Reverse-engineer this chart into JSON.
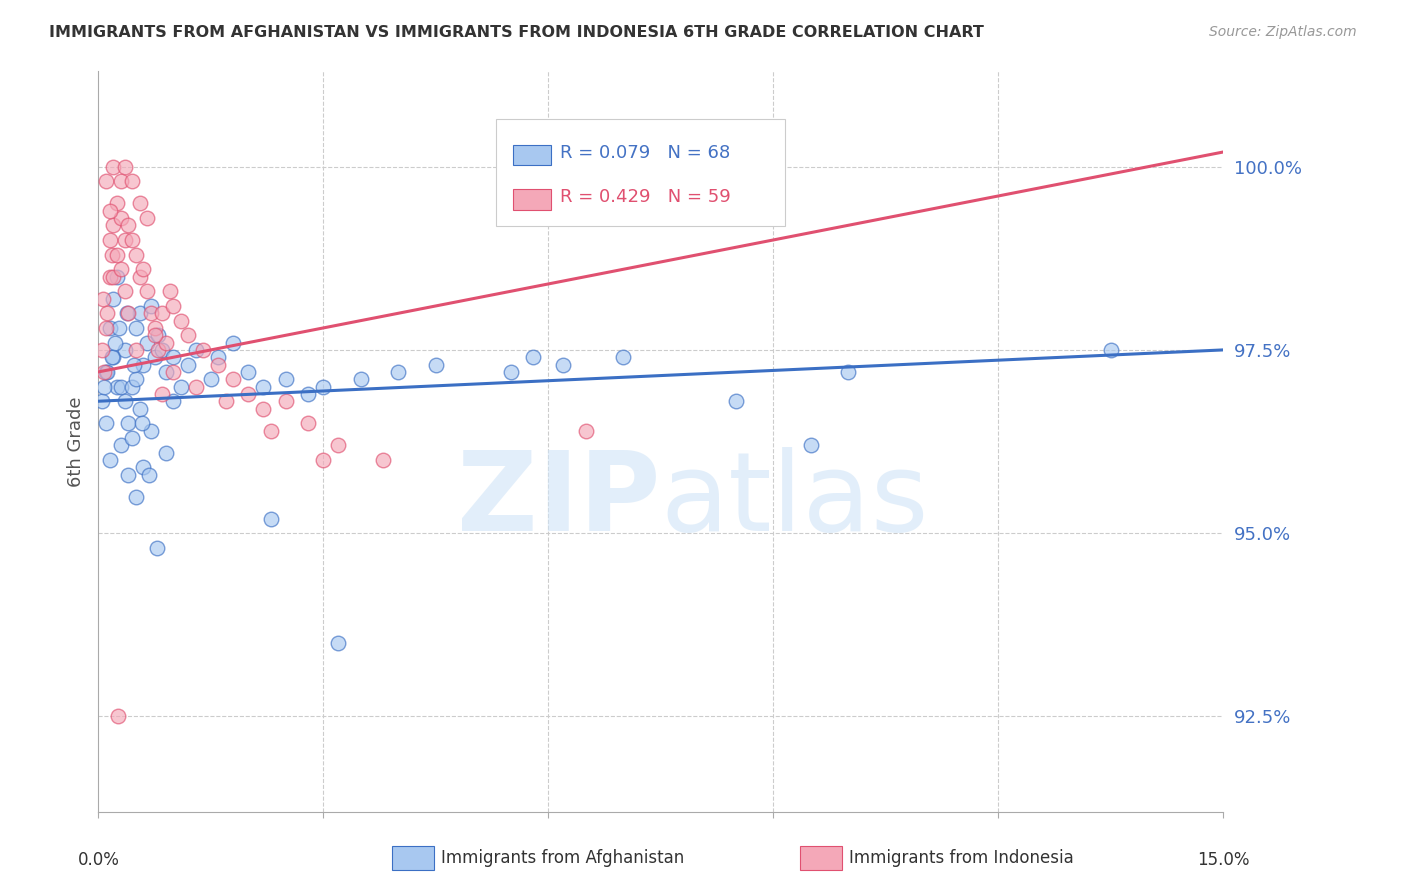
{
  "title": "IMMIGRANTS FROM AFGHANISTAN VS IMMIGRANTS FROM INDONESIA 6TH GRADE CORRELATION CHART",
  "source": "Source: ZipAtlas.com",
  "ylabel": "6th Grade",
  "yaxis_values": [
    100.0,
    97.5,
    95.0,
    92.5
  ],
  "xmin": 0.0,
  "xmax": 15.0,
  "ymin": 91.2,
  "ymax": 101.3,
  "legend_r_afghanistan": "R = 0.079",
  "legend_n_afghanistan": "N = 68",
  "legend_r_indonesia": "R = 0.429",
  "legend_n_indonesia": "N = 59",
  "afghanistan_color": "#A8C8F0",
  "indonesia_color": "#F4A8B8",
  "afghanistan_line_color": "#3B6FC4",
  "indonesia_line_color": "#E05070",
  "afghanistan_x": [
    0.1,
    0.1,
    0.15,
    0.15,
    0.2,
    0.2,
    0.25,
    0.25,
    0.3,
    0.3,
    0.35,
    0.35,
    0.4,
    0.4,
    0.45,
    0.45,
    0.5,
    0.5,
    0.5,
    0.55,
    0.55,
    0.6,
    0.6,
    0.65,
    0.7,
    0.7,
    0.75,
    0.8,
    0.85,
    0.9,
    0.9,
    1.0,
    1.0,
    1.1,
    1.2,
    1.3,
    1.5,
    1.6,
    1.8,
    2.0,
    2.2,
    2.5,
    2.8,
    3.0,
    3.5,
    4.0,
    4.5,
    5.5,
    5.8,
    6.2,
    7.0,
    8.5,
    9.5,
    10.0,
    0.05,
    0.08,
    0.12,
    0.18,
    0.22,
    0.28,
    0.38,
    0.48,
    0.58,
    0.68,
    0.78,
    2.3,
    3.2,
    13.5
  ],
  "afghanistan_y": [
    97.2,
    96.5,
    97.8,
    96.0,
    98.2,
    97.4,
    98.5,
    97.0,
    97.0,
    96.2,
    97.5,
    96.8,
    96.5,
    95.8,
    97.0,
    96.3,
    97.8,
    97.1,
    95.5,
    98.0,
    96.7,
    97.3,
    95.9,
    97.6,
    98.1,
    96.4,
    97.4,
    97.7,
    97.5,
    97.2,
    96.1,
    97.4,
    96.8,
    97.0,
    97.3,
    97.5,
    97.1,
    97.4,
    97.6,
    97.2,
    97.0,
    97.1,
    96.9,
    97.0,
    97.1,
    97.2,
    97.3,
    97.2,
    97.4,
    97.3,
    97.4,
    96.8,
    96.2,
    97.2,
    96.8,
    97.0,
    97.2,
    97.4,
    97.6,
    97.8,
    98.0,
    97.3,
    96.5,
    95.8,
    94.8,
    95.2,
    93.5,
    97.5
  ],
  "indonesia_x": [
    0.05,
    0.08,
    0.1,
    0.12,
    0.15,
    0.15,
    0.18,
    0.2,
    0.2,
    0.25,
    0.25,
    0.3,
    0.3,
    0.35,
    0.35,
    0.4,
    0.4,
    0.45,
    0.5,
    0.5,
    0.55,
    0.6,
    0.65,
    0.7,
    0.75,
    0.8,
    0.85,
    0.9,
    0.95,
    1.0,
    1.1,
    1.2,
    1.4,
    1.6,
    1.8,
    2.0,
    2.2,
    2.5,
    2.8,
    3.2,
    3.8,
    0.1,
    0.2,
    0.3,
    0.35,
    0.45,
    0.55,
    0.65,
    0.75,
    0.85,
    1.0,
    1.3,
    1.7,
    2.3,
    3.0,
    6.5,
    0.06,
    0.16,
    0.26
  ],
  "indonesia_y": [
    97.5,
    97.2,
    97.8,
    98.0,
    98.5,
    99.0,
    98.8,
    99.2,
    98.5,
    99.5,
    98.8,
    99.3,
    98.6,
    99.0,
    98.3,
    99.2,
    98.0,
    99.0,
    98.8,
    97.5,
    98.5,
    98.6,
    98.3,
    98.0,
    97.8,
    97.5,
    98.0,
    97.6,
    98.3,
    98.1,
    97.9,
    97.7,
    97.5,
    97.3,
    97.1,
    96.9,
    96.7,
    96.8,
    96.5,
    96.2,
    96.0,
    99.8,
    100.0,
    99.8,
    100.0,
    99.8,
    99.5,
    99.3,
    97.7,
    96.9,
    97.2,
    97.0,
    96.8,
    96.4,
    96.0,
    96.4,
    98.2,
    99.4,
    92.5
  ]
}
